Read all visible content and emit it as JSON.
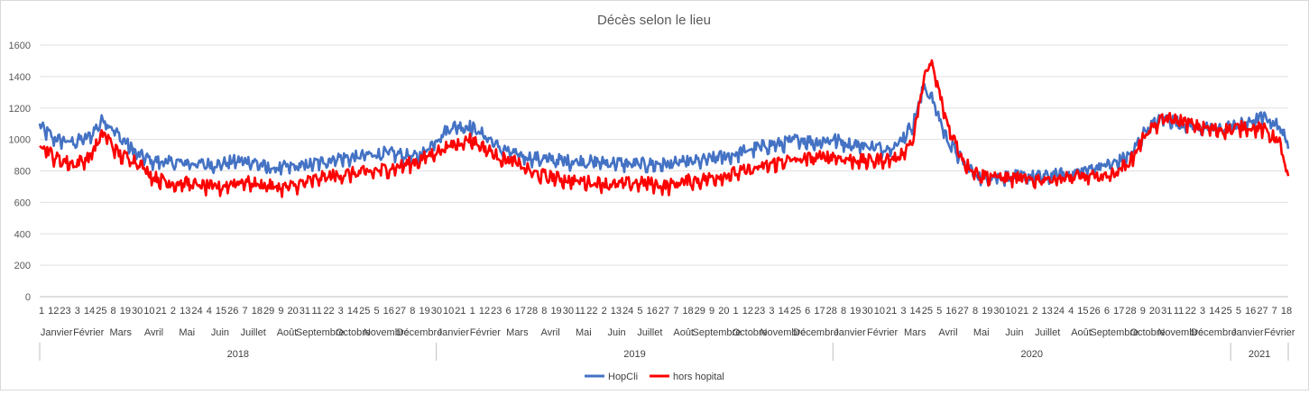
{
  "chart_data": {
    "type": "line",
    "title": "Décès selon le lieu",
    "xlabel": "",
    "ylabel": "",
    "ylim": [
      0,
      1600
    ],
    "y_ticks": [
      0,
      200,
      400,
      600,
      800,
      1000,
      1200,
      1400,
      1600
    ],
    "x_domain_days": [
      "2018-01-01",
      "2021-02-23"
    ],
    "grid": "horizontal",
    "legend_position": "bottom",
    "years": [
      "2018",
      "2019",
      "2020",
      "2021"
    ],
    "months": [
      "Janvier",
      "Février",
      "Mars",
      "Avril",
      "Mai",
      "Juin",
      "Juillet",
      "Août",
      "Septembre",
      "Octobre",
      "Novembre",
      "Décembre",
      "Janvier",
      "Février",
      "Mars",
      "Avril",
      "Mai",
      "Juin",
      "Juillet",
      "Août",
      "Septembre",
      "Octobre",
      "Novembre",
      "Décembre",
      "Janvier",
      "Février",
      "Mars",
      "Avril",
      "Mai",
      "Juin",
      "Juillet",
      "Août",
      "Septembre",
      "Octobre",
      "Novembre",
      "Décembre",
      "Janvier",
      "Février"
    ],
    "day_ticks": [
      "1",
      "12",
      "23",
      "3",
      "14",
      "25",
      "8",
      "19",
      "30",
      "10",
      "21",
      "2",
      "13",
      "24",
      "4",
      "15",
      "26",
      "7",
      "18",
      "29",
      "9",
      "20",
      "31",
      "11",
      "22",
      "3",
      "14",
      "25",
      "5",
      "16",
      "27",
      "8",
      "19",
      "30",
      "10",
      "21",
      "1",
      "12",
      "23",
      "6",
      "17",
      "28",
      "8",
      "19",
      "30",
      "11",
      "22",
      "2",
      "13",
      "24",
      "5",
      "16",
      "27",
      "7",
      "18",
      "29",
      "9",
      "20",
      "1",
      "12",
      "23",
      "3",
      "14",
      "25",
      "6",
      "17",
      "28",
      "8",
      "19",
      "30",
      "10",
      "21",
      "3",
      "14",
      "25",
      "5",
      "16",
      "27",
      "8",
      "19",
      "30",
      "10",
      "21",
      "2",
      "13",
      "24",
      "4",
      "15",
      "26",
      "6",
      "17",
      "28",
      "9",
      "20",
      "31",
      "11",
      "22",
      "3",
      "14",
      "25",
      "5",
      "16",
      "27",
      "7",
      "18"
    ],
    "series": [
      {
        "name": "HopCli",
        "color": "#4472C4",
        "x": [
          "2018-01-01",
          "2018-01-15",
          "2018-02-01",
          "2018-02-15",
          "2018-03-01",
          "2018-03-15",
          "2018-04-01",
          "2018-04-15",
          "2018-05-01",
          "2018-05-15",
          "2018-06-01",
          "2018-06-15",
          "2018-07-01",
          "2018-07-15",
          "2018-08-01",
          "2018-08-15",
          "2018-09-01",
          "2018-09-15",
          "2018-10-01",
          "2018-10-15",
          "2018-11-01",
          "2018-11-15",
          "2018-12-01",
          "2018-12-15",
          "2019-01-01",
          "2019-01-15",
          "2019-02-01",
          "2019-02-15",
          "2019-03-01",
          "2019-03-15",
          "2019-04-01",
          "2019-04-15",
          "2019-05-01",
          "2019-05-15",
          "2019-06-01",
          "2019-06-15",
          "2019-07-01",
          "2019-07-15",
          "2019-08-01",
          "2019-08-15",
          "2019-09-01",
          "2019-09-15",
          "2019-10-01",
          "2019-10-15",
          "2019-11-01",
          "2019-11-15",
          "2019-12-01",
          "2019-12-15",
          "2020-01-01",
          "2020-01-15",
          "2020-02-01",
          "2020-02-15",
          "2020-03-01",
          "2020-03-15",
          "2020-03-25",
          "2020-04-01",
          "2020-04-15",
          "2020-05-01",
          "2020-05-15",
          "2020-06-01",
          "2020-06-15",
          "2020-07-01",
          "2020-07-15",
          "2020-08-01",
          "2020-08-15",
          "2020-09-01",
          "2020-09-15",
          "2020-10-01",
          "2020-10-15",
          "2020-11-01",
          "2020-11-15",
          "2020-12-01",
          "2020-12-15",
          "2021-01-01",
          "2021-01-15",
          "2021-02-01",
          "2021-02-15",
          "2021-02-23"
        ],
        "values": [
          1080,
          1000,
          980,
          1010,
          1130,
          1020,
          900,
          860,
          850,
          850,
          840,
          840,
          860,
          860,
          810,
          820,
          830,
          850,
          880,
          880,
          900,
          910,
          900,
          880,
          1000,
          1080,
          1080,
          1020,
          940,
          900,
          880,
          870,
          860,
          860,
          850,
          850,
          840,
          840,
          840,
          850,
          860,
          880,
          900,
          930,
          960,
          970,
          1000,
          980,
          1000,
          970,
          960,
          940,
          970,
          1100,
          1340,
          1260,
          1000,
          840,
          760,
          760,
          760,
          760,
          760,
          780,
          790,
          830,
          840,
          900,
          1060,
          1140,
          1100,
          1080,
          1060,
          1080,
          1100,
          1140,
          1080,
          960
        ]
      },
      {
        "name": "hors hopital",
        "color": "#FF0000",
        "x": [
          "2018-01-01",
          "2018-01-15",
          "2018-02-01",
          "2018-02-15",
          "2018-03-01",
          "2018-03-15",
          "2018-04-01",
          "2018-04-15",
          "2018-05-01",
          "2018-05-15",
          "2018-06-01",
          "2018-06-15",
          "2018-07-01",
          "2018-07-15",
          "2018-08-01",
          "2018-08-15",
          "2018-09-01",
          "2018-09-15",
          "2018-10-01",
          "2018-10-15",
          "2018-11-01",
          "2018-11-15",
          "2018-12-01",
          "2018-12-15",
          "2019-01-01",
          "2019-01-15",
          "2019-02-01",
          "2019-02-15",
          "2019-03-01",
          "2019-03-15",
          "2019-04-01",
          "2019-04-15",
          "2019-05-01",
          "2019-05-15",
          "2019-06-01",
          "2019-06-15",
          "2019-07-01",
          "2019-07-15",
          "2019-08-01",
          "2019-08-15",
          "2019-09-01",
          "2019-09-15",
          "2019-10-01",
          "2019-10-15",
          "2019-11-01",
          "2019-11-15",
          "2019-12-01",
          "2019-12-15",
          "2020-01-01",
          "2020-01-15",
          "2020-02-01",
          "2020-02-15",
          "2020-03-01",
          "2020-03-15",
          "2020-03-25",
          "2020-04-01",
          "2020-04-15",
          "2020-05-01",
          "2020-05-15",
          "2020-06-01",
          "2020-06-15",
          "2020-07-01",
          "2020-07-15",
          "2020-08-01",
          "2020-08-15",
          "2020-09-01",
          "2020-09-15",
          "2020-10-01",
          "2020-10-15",
          "2020-11-01",
          "2020-11-15",
          "2020-12-01",
          "2020-12-15",
          "2021-01-01",
          "2021-01-15",
          "2021-02-01",
          "2021-02-15",
          "2021-02-23"
        ],
        "values": [
          980,
          880,
          840,
          880,
          1040,
          900,
          860,
          760,
          720,
          720,
          700,
          690,
          730,
          720,
          700,
          690,
          720,
          750,
          770,
          780,
          790,
          810,
          830,
          860,
          920,
          960,
          1000,
          940,
          880,
          850,
          780,
          760,
          740,
          730,
          720,
          710,
          720,
          720,
          700,
          730,
          740,
          760,
          780,
          800,
          830,
          860,
          870,
          880,
          890,
          870,
          860,
          870,
          880,
          1000,
          1400,
          1480,
          1100,
          850,
          770,
          760,
          750,
          740,
          750,
          750,
          760,
          760,
          780,
          860,
          1040,
          1130,
          1120,
          1080,
          1060,
          1060,
          1080,
          1060,
          980,
          750
        ]
      }
    ]
  }
}
